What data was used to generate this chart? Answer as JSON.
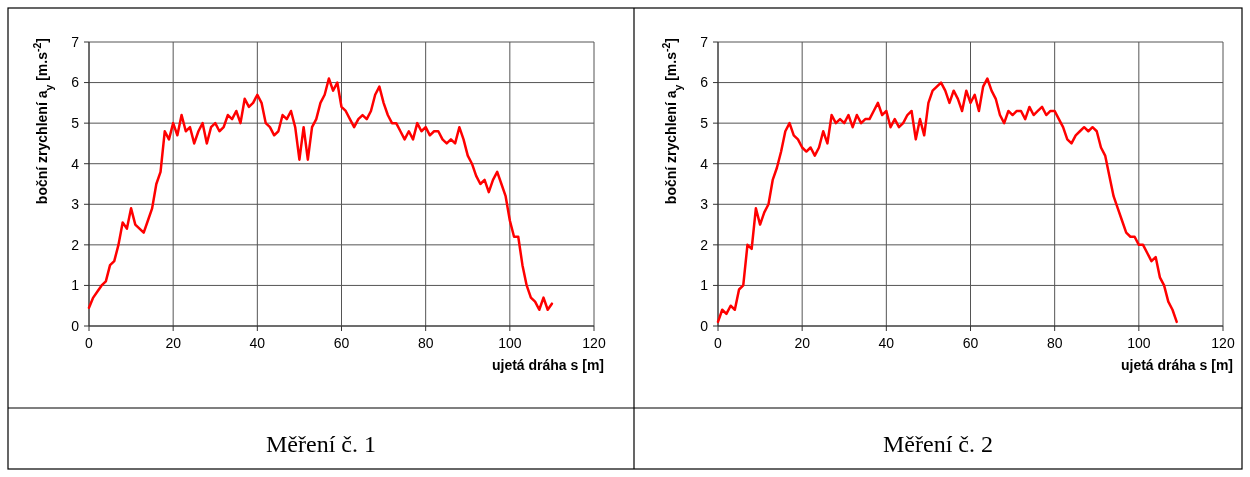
{
  "chart_data": [
    {
      "type": "line",
      "title": "Měření č. 1",
      "xlabel": "ujetá dráha s [m]",
      "ylabel": "boční zrychlení a$_{y}$ [m.s$^{-2}$]",
      "xlim": [
        0,
        120
      ],
      "xticks": [
        0,
        20,
        40,
        60,
        80,
        100,
        120
      ],
      "ylim": [
        0,
        7
      ],
      "yticks": [
        0,
        1,
        2,
        3,
        4,
        5,
        6,
        7
      ],
      "grid": true,
      "line_style": "solid",
      "series": [
        {
          "color": "#ff0000",
          "x": [
            0,
            1,
            2,
            3,
            4,
            5,
            6,
            7,
            8,
            9,
            10,
            11,
            12,
            13,
            14,
            15,
            16,
            17,
            18,
            19,
            20,
            21,
            22,
            23,
            24,
            25,
            26,
            27,
            28,
            29,
            30,
            31,
            32,
            33,
            34,
            35,
            36,
            37,
            38,
            39,
            40,
            41,
            42,
            43,
            44,
            45,
            46,
            47,
            48,
            49,
            50,
            51,
            52,
            53,
            54,
            55,
            56,
            57,
            58,
            59,
            60,
            61,
            62,
            63,
            64,
            65,
            66,
            67,
            68,
            69,
            70,
            71,
            72,
            73,
            74,
            75,
            76,
            77,
            78,
            79,
            80,
            81,
            82,
            83,
            84,
            85,
            86,
            87,
            88,
            89,
            90,
            91,
            92,
            93,
            94,
            95,
            96,
            97,
            98,
            99,
            100,
            101,
            102,
            103,
            104,
            105,
            106,
            107,
            108,
            109,
            110
          ],
          "values": [
            0.45,
            0.7,
            0.85,
            1.0,
            1.1,
            1.5,
            1.6,
            2.0,
            2.55,
            2.4,
            2.9,
            2.5,
            2.4,
            2.3,
            2.6,
            2.9,
            3.5,
            3.8,
            4.8,
            4.6,
            5.0,
            4.7,
            5.2,
            4.8,
            4.9,
            4.5,
            4.8,
            5.0,
            4.5,
            4.9,
            5.0,
            4.8,
            4.9,
            5.2,
            5.1,
            5.3,
            5.0,
            5.6,
            5.4,
            5.5,
            5.7,
            5.5,
            5.0,
            4.9,
            4.7,
            4.8,
            5.2,
            5.1,
            5.3,
            4.9,
            4.1,
            4.9,
            4.1,
            4.9,
            5.1,
            5.5,
            5.7,
            6.1,
            5.8,
            6.0,
            5.4,
            5.3,
            5.1,
            4.9,
            5.1,
            5.2,
            5.1,
            5.3,
            5.7,
            5.9,
            5.5,
            5.2,
            5.0,
            5.0,
            4.8,
            4.6,
            4.8,
            4.6,
            5.0,
            4.8,
            4.9,
            4.7,
            4.8,
            4.8,
            4.6,
            4.5,
            4.6,
            4.5,
            4.9,
            4.6,
            4.2,
            4.0,
            3.7,
            3.5,
            3.6,
            3.3,
            3.6,
            3.8,
            3.5,
            3.2,
            2.6,
            2.2,
            2.2,
            1.5,
            1.0,
            0.7,
            0.6,
            0.4,
            0.7,
            0.4,
            0.55
          ]
        }
      ]
    },
    {
      "type": "line",
      "title": "Měření č. 2",
      "xlabel": "ujetá dráha s [m]",
      "ylabel": "boční zrychlení a$_{y}$ [m.s$^{-2}$]",
      "xlim": [
        0,
        120
      ],
      "xticks": [
        0,
        20,
        40,
        60,
        80,
        100,
        120
      ],
      "ylim": [
        0,
        7
      ],
      "yticks": [
        0,
        1,
        2,
        3,
        4,
        5,
        6,
        7
      ],
      "grid": true,
      "line_style": "solid",
      "series": [
        {
          "color": "#ff0000",
          "x": [
            0,
            1,
            2,
            3,
            4,
            5,
            6,
            7,
            8,
            9,
            10,
            11,
            12,
            13,
            14,
            15,
            16,
            17,
            18,
            19,
            20,
            21,
            22,
            23,
            24,
            25,
            26,
            27,
            28,
            29,
            30,
            31,
            32,
            33,
            34,
            35,
            36,
            37,
            38,
            39,
            40,
            41,
            42,
            43,
            44,
            45,
            46,
            47,
            48,
            49,
            50,
            51,
            52,
            53,
            54,
            55,
            56,
            57,
            58,
            59,
            60,
            61,
            62,
            63,
            64,
            65,
            66,
            67,
            68,
            69,
            70,
            71,
            72,
            73,
            74,
            75,
            76,
            77,
            78,
            79,
            80,
            81,
            82,
            83,
            84,
            85,
            86,
            87,
            88,
            89,
            90,
            91,
            92,
            93,
            94,
            95,
            96,
            97,
            98,
            99,
            100,
            101,
            102,
            103,
            104,
            105,
            106,
            107,
            108,
            109
          ],
          "values": [
            0.1,
            0.4,
            0.3,
            0.5,
            0.4,
            0.9,
            1.0,
            2.0,
            1.9,
            2.9,
            2.5,
            2.8,
            3.0,
            3.6,
            3.9,
            4.3,
            4.8,
            5.0,
            4.7,
            4.6,
            4.4,
            4.3,
            4.4,
            4.2,
            4.4,
            4.8,
            4.5,
            5.2,
            5.0,
            5.1,
            5.0,
            5.2,
            4.9,
            5.2,
            5.0,
            5.1,
            5.1,
            5.3,
            5.5,
            5.2,
            5.3,
            4.9,
            5.1,
            4.9,
            5.0,
            5.2,
            5.3,
            4.6,
            5.1,
            4.7,
            5.5,
            5.8,
            5.9,
            6.0,
            5.8,
            5.5,
            5.8,
            5.6,
            5.3,
            5.8,
            5.5,
            5.7,
            5.3,
            5.9,
            6.1,
            5.8,
            5.6,
            5.2,
            5.0,
            5.3,
            5.2,
            5.3,
            5.3,
            5.1,
            5.4,
            5.2,
            5.3,
            5.4,
            5.2,
            5.3,
            5.3,
            5.1,
            4.9,
            4.6,
            4.5,
            4.7,
            4.8,
            4.9,
            4.8,
            4.9,
            4.8,
            4.4,
            4.2,
            3.7,
            3.2,
            2.9,
            2.6,
            2.3,
            2.2,
            2.2,
            2.0,
            2.0,
            1.8,
            1.6,
            1.7,
            1.2,
            1.0,
            0.6,
            0.4,
            0.1
          ]
        }
      ]
    }
  ]
}
